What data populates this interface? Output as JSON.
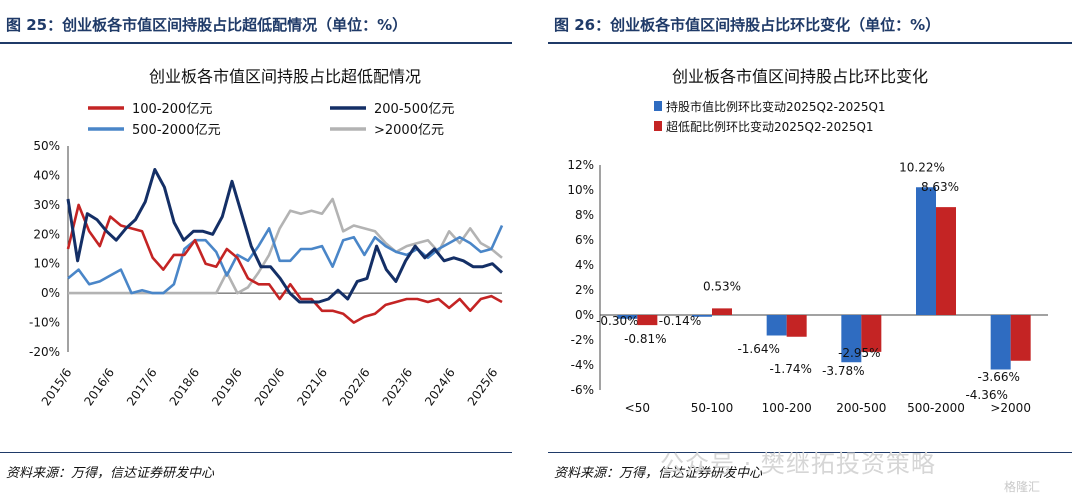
{
  "figures": [
    {
      "title": "图 25：创业板各市值区间持股占比超低配情况（单位：%）",
      "source": "资料来源：万得，信达证券研发中心"
    },
    {
      "title": "图 26：创业板各市值区间持股占比环比变化（单位：%）",
      "source": "资料来源：万得，信达证券研发中心"
    }
  ],
  "watermark": "公众号 · 樊继拓投资策略",
  "watermark_logo": "格隆汇",
  "chart_data": [
    {
      "type": "line",
      "title": "创业板各市值区间持股占比超低配情况",
      "ylim": [
        -20,
        50
      ],
      "yticks": [
        "-20%",
        "-10%",
        "0%",
        "10%",
        "20%",
        "30%",
        "40%",
        "50%"
      ],
      "ytick_values": [
        -20,
        -10,
        0,
        10,
        20,
        30,
        40,
        50
      ],
      "xticks": [
        "2015/6",
        "2016/6",
        "2017/6",
        "2018/6",
        "2019/6",
        "2020/6",
        "2021/6",
        "2022/6",
        "2023/6",
        "2024/6",
        "2025/6"
      ],
      "legend_position": "top",
      "colors": {
        "s1": "#c42424",
        "s2": "#142f66",
        "s3": "#4a86c8",
        "s4": "#b3b3b3"
      },
      "series": [
        {
          "name": "100-200亿元",
          "values": [
            15,
            30,
            21,
            16,
            26,
            23,
            22,
            21,
            12,
            8,
            13,
            13,
            18,
            10,
            9,
            15,
            12,
            5,
            3,
            3,
            -2,
            3,
            -2,
            -2,
            -6,
            -6,
            -7,
            -10,
            -8,
            -7,
            -4,
            -3,
            -2,
            -2,
            -3,
            -2,
            -5,
            -2,
            -6,
            -2,
            -1,
            -3
          ]
        },
        {
          "name": "200-500亿元",
          "values": [
            32,
            11,
            27,
            25,
            21,
            18,
            22,
            25,
            31,
            42,
            36,
            24,
            18,
            21,
            21,
            20,
            26,
            38,
            27,
            16,
            9,
            9,
            5,
            0,
            -3,
            -3,
            -3,
            -2,
            1,
            -2,
            4,
            5,
            16,
            8,
            4,
            11,
            16,
            12,
            15,
            11,
            12,
            11,
            9,
            9,
            10,
            7
          ]
        },
        {
          "name": "500-2000亿元",
          "values": [
            5,
            8,
            3,
            4,
            6,
            8,
            0,
            1,
            0,
            0,
            3,
            15,
            18,
            18,
            14,
            6,
            13,
            11,
            16,
            22,
            11,
            11,
            15,
            15,
            16,
            9,
            18,
            19,
            13,
            19,
            16,
            14,
            13,
            15,
            12,
            15,
            17,
            19,
            17,
            14,
            15,
            23
          ]
        },
        {
          "name": ">2000亿元",
          "values": [
            0,
            0,
            0,
            0,
            0,
            0,
            0,
            0,
            0,
            0,
            0,
            0,
            0,
            0,
            0,
            7,
            0,
            2,
            7,
            13,
            22,
            28,
            27,
            28,
            27,
            32,
            21,
            23,
            22,
            21,
            17,
            14,
            16,
            17,
            18,
            14,
            21,
            17,
            22,
            17,
            15,
            12
          ]
        }
      ]
    },
    {
      "type": "bar",
      "title": "创业板各市值区间持股占比环比变化",
      "categories": [
        "<50",
        "50-100",
        "100-200",
        "200-500",
        "500-2000",
        ">2000"
      ],
      "ylim": [
        -6,
        12
      ],
      "yticks": [
        "-6%",
        "-4%",
        "-2%",
        "0%",
        "2%",
        "4%",
        "6%",
        "8%",
        "10%",
        "12%"
      ],
      "ytick_values": [
        -6,
        -4,
        -2,
        0,
        2,
        4,
        6,
        8,
        10,
        12
      ],
      "legend_position": "top-left",
      "colors": {
        "s1": "#2f6cc1",
        "s2": "#c42424"
      },
      "series": [
        {
          "name": "持股市值比例环比变动2025Q2-2025Q1",
          "values": [
            -0.3,
            -0.14,
            -1.64,
            -3.78,
            10.22,
            -4.36
          ],
          "labels": [
            "-0.30%",
            "-0.14%",
            "-1.64%",
            "-3.78%",
            "10.22%",
            "-4.36%"
          ]
        },
        {
          "name": "超低配比例环比变动2025Q2-2025Q1",
          "values": [
            -0.81,
            0.53,
            -1.74,
            -2.95,
            8.63,
            -3.66
          ],
          "labels": [
            "-0.81%",
            "0.53%",
            "-1.74%",
            "-2.95%",
            "8.63%",
            "-3.66%"
          ]
        }
      ]
    }
  ]
}
